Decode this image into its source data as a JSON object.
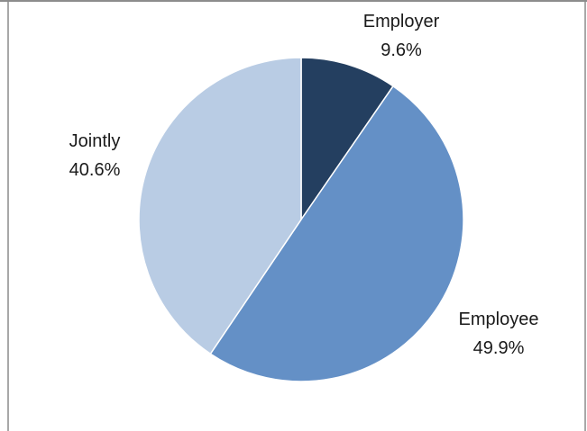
{
  "chart_data": {
    "type": "pie",
    "title": "",
    "slices": [
      {
        "label": "Employer",
        "value": 9.6,
        "value_label": "9.6%",
        "color": "#243f60"
      },
      {
        "label": "Employee",
        "value": 49.9,
        "value_label": "49.9%",
        "color": "#6490c6"
      },
      {
        "label": "Jointly",
        "value": 40.6,
        "value_label": "40.6%",
        "color": "#b9cce4"
      }
    ],
    "start_angle": "12 o'clock",
    "direction": "clockwise",
    "legend": "none"
  },
  "colors": {
    "frame_border": "#8c8c8c",
    "slice_border": "#ffffff"
  }
}
